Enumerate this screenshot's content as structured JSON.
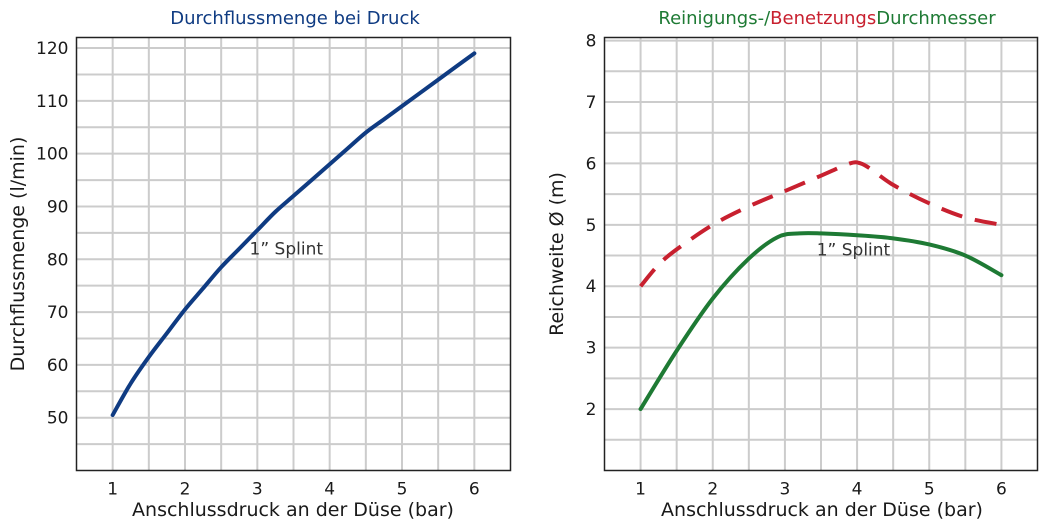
{
  "colors": {
    "flow": "#0f3b82",
    "wetting": "#c8202f",
    "cleaning": "#1e7a34",
    "title_left": "#0f3b82"
  },
  "chart_data": [
    {
      "type": "line",
      "title": "Durchflussmenge bei Druck",
      "xlabel": "Anschlussdruck an der Düse (bar)",
      "ylabel": "Durchflussmenge (l/min)",
      "xlim": [
        0.5,
        6.5
      ],
      "ylim": [
        40,
        122
      ],
      "xticks": [
        1,
        2,
        3,
        4,
        5,
        6
      ],
      "yticks": [
        50,
        60,
        70,
        80,
        90,
        100,
        110,
        120
      ],
      "grid": true,
      "series": [
        {
          "x": [
            1,
            1.25,
            1.5,
            1.75,
            2,
            2.25,
            2.5,
            2.75,
            3,
            3.25,
            3.5,
            3.75,
            4,
            4.25,
            4.5,
            4.75,
            5,
            5.25,
            5.5,
            5.75,
            6
          ],
          "values": [
            50.5,
            56.5,
            61.5,
            66.0,
            70.5,
            74.5,
            78.5,
            82.0,
            85.5,
            89.0,
            92.0,
            95.0,
            98.0,
            101.0,
            104.0,
            106.5,
            109.0,
            111.5,
            114.0,
            116.5,
            119.0
          ],
          "style": "solid"
        }
      ],
      "annotations": [
        {
          "text": "1” Splint",
          "x": 3.4,
          "y": 82
        }
      ]
    },
    {
      "type": "line",
      "title_parts": [
        {
          "text": "Reinigungs-/",
          "color": "#1e7a34"
        },
        {
          "text": "Benetzungs",
          "color": "#c8202f"
        },
        {
          "text": "Durchmesser",
          "color": "#1e7a34"
        }
      ],
      "xlabel": "Anschlussdruck an der Düse (bar)",
      "ylabel": "Reichweite Ø (m)",
      "xlim": [
        0.5,
        6.5
      ],
      "ylim": [
        1,
        8.05
      ],
      "xticks": [
        1,
        2,
        3,
        4,
        5,
        6
      ],
      "yticks": [
        2,
        3,
        4,
        5,
        6,
        7,
        8
      ],
      "grid": true,
      "series": [
        {
          "x": [
            1,
            1.25,
            1.5,
            2,
            2.5,
            3,
            3.5,
            3.9,
            4.05,
            4.2,
            4.5,
            5,
            5.5,
            6
          ],
          "values": [
            4.0,
            4.35,
            4.6,
            5.0,
            5.3,
            5.55,
            5.8,
            6.0,
            6.0,
            5.9,
            5.65,
            5.35,
            5.12,
            5.0
          ],
          "style": "dashed",
          "color": "#c8202f"
        },
        {
          "x": [
            1,
            1.5,
            2,
            2.5,
            2.9,
            3.2,
            3.5,
            4,
            4.5,
            5,
            5.5,
            6
          ],
          "values": [
            2.0,
            2.95,
            3.8,
            4.45,
            4.8,
            4.86,
            4.86,
            4.83,
            4.78,
            4.68,
            4.5,
            4.18
          ],
          "style": "solid",
          "color": "#1e7a34"
        }
      ],
      "annotations": [
        {
          "text": "1” Splint",
          "x": 3.95,
          "y": 4.6
        }
      ]
    }
  ]
}
